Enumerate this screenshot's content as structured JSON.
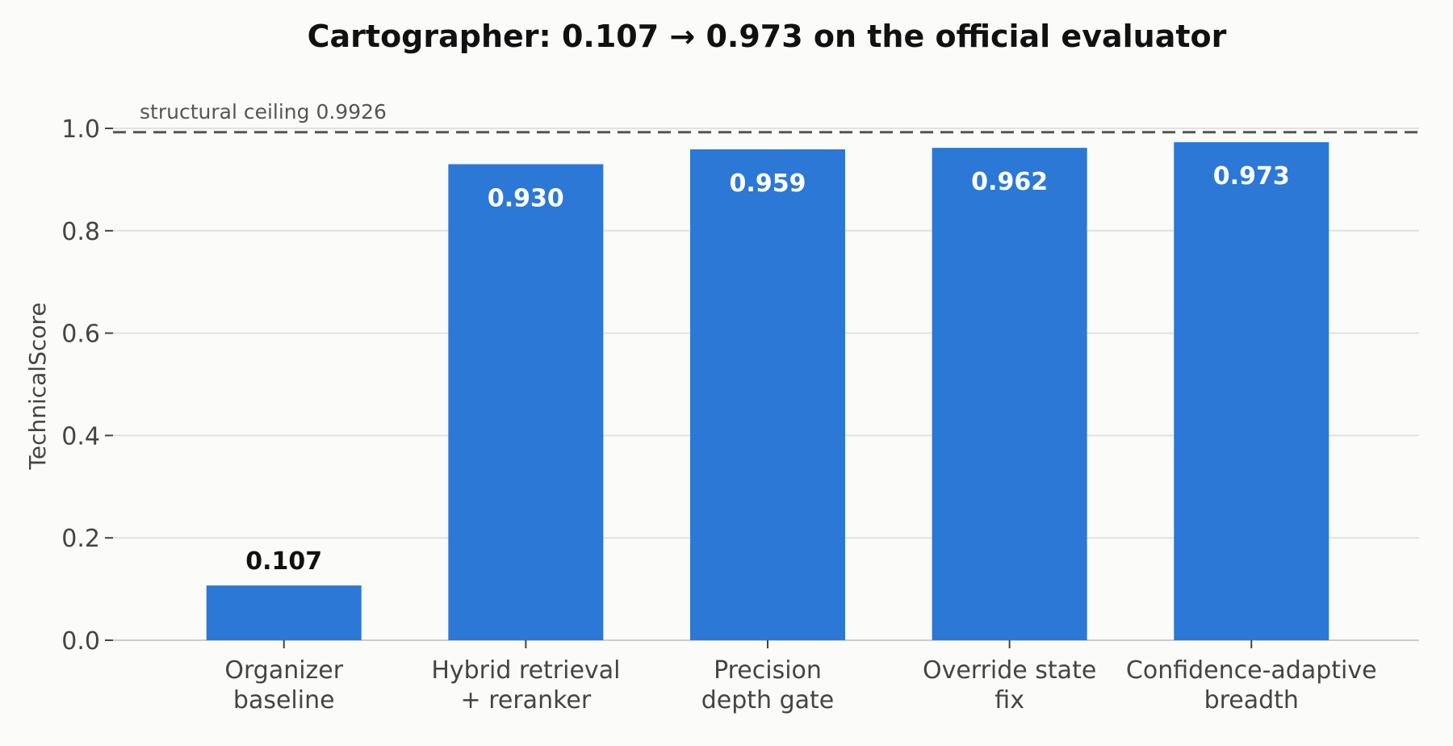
{
  "chart_data": {
    "type": "bar",
    "title": "Cartographer: 0.107 → 0.973 on the official evaluator",
    "xlabel": "",
    "ylabel": "TechnicalScore",
    "ylim": [
      0,
      1.0
    ],
    "yticks": [
      "0.0",
      "0.2",
      "0.4",
      "0.6",
      "0.8",
      "1.0"
    ],
    "grid": true,
    "categories": [
      [
        "Organizer",
        "baseline"
      ],
      [
        "Hybrid retrieval",
        "+ reranker"
      ],
      [
        "Precision",
        "depth gate"
      ],
      [
        "Override state",
        "fix"
      ],
      [
        "Confidence-adaptive",
        "breadth"
      ]
    ],
    "values": [
      0.107,
      0.93,
      0.959,
      0.962,
      0.973
    ],
    "data_labels": [
      "0.107",
      "0.930",
      "0.959",
      "0.962",
      "0.973"
    ],
    "reference_line": {
      "value": 0.9926,
      "label": "structural ceiling 0.9926",
      "style": "dashed"
    },
    "colors": {
      "bar": "#2b78d6",
      "ceiling_line": "#555555",
      "grid": "#e2e2e2",
      "text": "#444444",
      "label_inside": "#ffffff",
      "label_outside": "#111111"
    }
  }
}
